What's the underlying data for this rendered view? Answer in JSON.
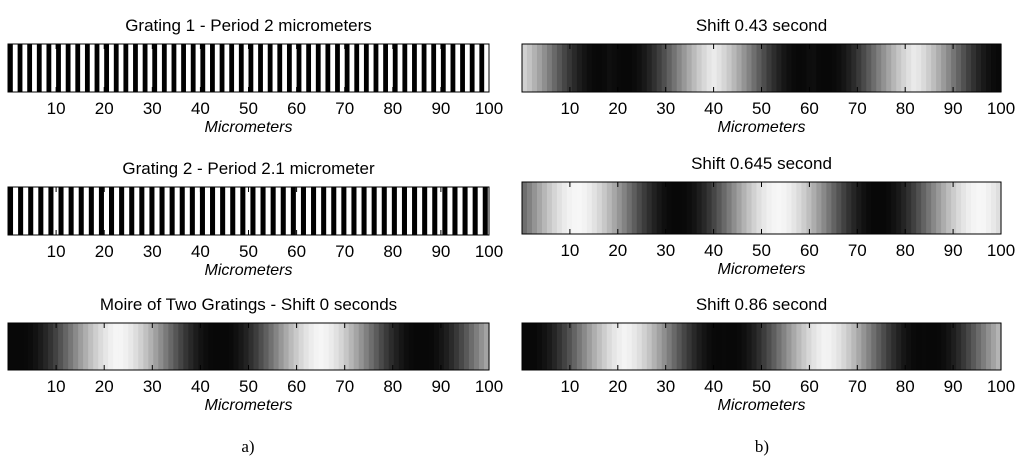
{
  "captions": {
    "left": "a)",
    "right": "b)"
  },
  "chart_data": [
    {
      "type": "heatmap",
      "title": "Grating 1 - Period 2 micrometers",
      "xlabel": "Micrometers",
      "xlim": [
        0,
        100
      ],
      "xticks": [
        10,
        20,
        30,
        40,
        50,
        60,
        70,
        80,
        90,
        100
      ],
      "pattern": "square-grating",
      "period": 2,
      "phase": 0,
      "colormap": "gray"
    },
    {
      "type": "heatmap",
      "title": "Grating 2 - Period 2.1 micrometer",
      "xlabel": "Micrometers",
      "xlim": [
        0,
        100
      ],
      "xticks": [
        10,
        20,
        30,
        40,
        50,
        60,
        70,
        80,
        90,
        100
      ],
      "pattern": "square-grating",
      "period": 2.1,
      "phase": 0,
      "colormap": "gray"
    },
    {
      "type": "heatmap",
      "title": "Moire of Two Gratings - Shift 0 seconds",
      "xlabel": "Micrometers",
      "xlim": [
        0,
        100
      ],
      "xticks": [
        10,
        20,
        30,
        40,
        50,
        60,
        70,
        80,
        90,
        100
      ],
      "pattern": "moire",
      "dark_centers": [
        3,
        44,
        85
      ],
      "beat_period": 42,
      "colormap": "gray"
    },
    {
      "type": "heatmap",
      "title": "Shift 0.43 second",
      "xlabel": "Micrometers",
      "xlim": [
        0,
        100
      ],
      "xticks": [
        10,
        20,
        30,
        40,
        50,
        60,
        70,
        80,
        90,
        100
      ],
      "pattern": "moire",
      "dark_centers": [
        22,
        63,
        100
      ],
      "beat_period": 42,
      "colormap": "gray"
    },
    {
      "type": "heatmap",
      "title": "Shift 0.645 second",
      "xlabel": "Micrometers",
      "xlim": [
        0,
        100
      ],
      "xticks": [
        10,
        20,
        30,
        40,
        50,
        60,
        70,
        80,
        90,
        100
      ],
      "pattern": "moire",
      "dark_centers": [
        32,
        75
      ],
      "beat_period": 42,
      "colormap": "gray"
    },
    {
      "type": "heatmap",
      "title": "Shift 0.86 second",
      "xlabel": "Micrometers",
      "xlim": [
        0,
        100
      ],
      "xticks": [
        10,
        20,
        30,
        40,
        50,
        60,
        70,
        80,
        90,
        100
      ],
      "pattern": "moire",
      "dark_centers": [
        2,
        43,
        83
      ],
      "beat_period": 42,
      "colormap": "gray"
    }
  ]
}
